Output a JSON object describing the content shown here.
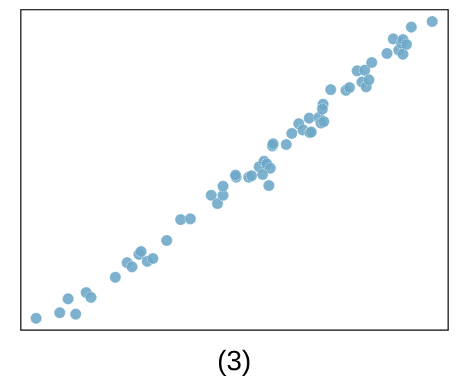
{
  "chart_data": {
    "type": "scatter",
    "title": "(3)",
    "x": [
      22,
      56,
      79,
      68,
      94,
      101,
      136,
      153,
      160,
      170,
      173,
      182,
      190,
      210,
      230,
      244,
      274,
      283,
      291,
      291,
      310,
      309,
      328,
      332,
      343,
      350,
      354,
      359,
      348,
      357,
      362,
      363,
      382,
      390,
      400,
      406,
      415,
      416,
      418,
      429,
      432,
      435,
      434,
      436,
      446,
      468,
      473,
      484,
      495,
      491,
      497,
      501,
      505,
      527,
      536,
      544,
      548,
      550,
      550,
      555,
      562,
      592
    ],
    "series": [
      {
        "color": "#6fa8c8",
        "values": [
          17,
          25,
          23,
          45,
          54,
          47,
          76,
          97,
          91,
          109,
          113,
          99,
          103,
          129,
          159,
          160,
          194,
          182,
          194,
          207,
          220,
          223,
          220,
          222,
          235,
          243,
          239,
          233,
          224,
          208,
          265,
          268,
          267,
          283,
          297,
          288,
          305,
          284,
          285,
          306,
          298,
          325,
          318,
          300,
          346,
          345,
          349,
          373,
          374,
          357,
          350,
          360,
          385,
          398,
          419,
          403,
          413,
          418,
          397,
          411,
          436,
          444
        ]
      }
    ],
    "xlim": [
      0,
      615
    ],
    "ylim": [
      0,
      461
    ]
  }
}
